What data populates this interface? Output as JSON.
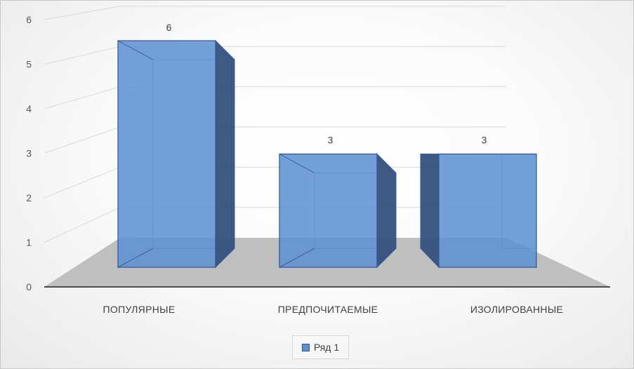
{
  "chart_data": {
    "type": "bar",
    "style": "3d-clustered-column",
    "categories": [
      "ПОПУЛЯРНЫЕ",
      "ПРЕДПОЧИТАЕМЫЕ",
      "ИЗОЛИРОВАННЫЕ"
    ],
    "series": [
      {
        "name": "Ряд 1",
        "values": [
          6,
          3,
          3
        ],
        "color": "#5b8fd2"
      }
    ],
    "data_labels": [
      "6",
      "3",
      "3"
    ],
    "yticks": [
      "0",
      "1",
      "2",
      "3",
      "4",
      "5",
      "6"
    ],
    "ylim": [
      0,
      6
    ],
    "grid": true,
    "legend": "bottom",
    "colors": {
      "bar_front": "#5b8fd2",
      "bar_side": "#34527e",
      "bar_edge": "#2f5597",
      "floor": "#bfbfbf"
    }
  }
}
